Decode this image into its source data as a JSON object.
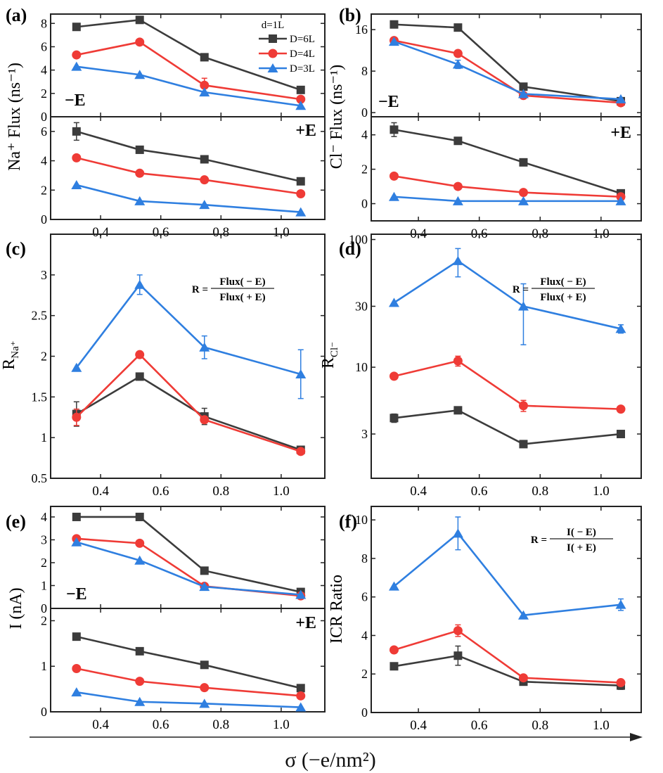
{
  "colors": {
    "D6": "#3c3c3c",
    "D4": "#ef3b36",
    "D3": "#2f7fe0"
  },
  "series_names": [
    "D=6L",
    "D=4L",
    "D=3L"
  ],
  "legend_title": "d=1L",
  "x_axis_label": "σ (−e/nm²)",
  "chart_data": [
    {
      "id": "a",
      "panel_label": "(a)",
      "type": "line",
      "ylabel": "Na⁺ Flux (ns⁻¹)",
      "x": [
        0.32,
        0.53,
        0.745,
        1.065
      ],
      "xlim": [
        0.234,
        1.145
      ],
      "xticks": [
        0.4,
        0.6,
        0.8,
        1.0
      ],
      "subplots": [
        {
          "field_label": "−E",
          "ylim": [
            0,
            8.8
          ],
          "yticks": [
            0,
            2,
            4,
            6,
            8
          ],
          "series": [
            {
              "name": "D=6L",
              "values": [
                7.7,
                8.3,
                5.1,
                2.3
              ],
              "err": [
                0,
                0,
                0,
                0
              ]
            },
            {
              "name": "D=4L",
              "values": [
                5.3,
                6.4,
                2.7,
                1.5
              ],
              "err": [
                0,
                0,
                0.6,
                0
              ]
            },
            {
              "name": "D=3L",
              "values": [
                4.3,
                3.6,
                2.1,
                0.95
              ],
              "err": [
                0,
                0,
                0,
                0
              ]
            }
          ]
        },
        {
          "field_label": "+E",
          "ylim": [
            0,
            7
          ],
          "yticks": [
            0,
            2,
            4,
            6
          ],
          "series": [
            {
              "name": "D=6L",
              "values": [
                6.0,
                4.75,
                4.1,
                2.6
              ],
              "err": [
                0.6,
                0,
                0,
                0
              ]
            },
            {
              "name": "D=4L",
              "values": [
                4.2,
                3.15,
                2.7,
                1.75
              ],
              "err": [
                0,
                0,
                0,
                0
              ]
            },
            {
              "name": "D=3L",
              "values": [
                2.35,
                1.25,
                1.0,
                0.5
              ],
              "err": [
                0,
                0,
                0,
                0
              ]
            }
          ]
        }
      ]
    },
    {
      "id": "b",
      "panel_label": "(b)",
      "type": "line",
      "ylabel": "Cl⁻ Flux (ns⁻¹)",
      "x": [
        0.32,
        0.53,
        0.745,
        1.065
      ],
      "xlim": [
        0.245,
        1.132
      ],
      "xticks": [
        0.4,
        0.6,
        0.8,
        1.0
      ],
      "subplots": [
        {
          "field_label": "−E",
          "ylim": [
            -0.8,
            19
          ],
          "yticks": [
            0,
            8,
            16
          ],
          "series": [
            {
              "name": "D=6L",
              "values": [
                17,
                16.4,
                5.0,
                2.2
              ],
              "err": [
                0,
                0,
                0,
                0
              ]
            },
            {
              "name": "D=4L",
              "values": [
                13.9,
                11.4,
                3.3,
                1.9
              ],
              "err": [
                0,
                0,
                0,
                0
              ]
            },
            {
              "name": "D=3L",
              "values": [
                13.7,
                9.3,
                3.6,
                2.6
              ],
              "err": [
                0,
                0.8,
                0,
                0
              ]
            }
          ]
        },
        {
          "field_label": "+E",
          "ylim": [
            -1,
            5.05
          ],
          "yticks": [
            0,
            2,
            4
          ],
          "series": [
            {
              "name": "D=6L",
              "values": [
                4.3,
                3.65,
                2.4,
                0.6
              ],
              "err": [
                0.4,
                0,
                0,
                0
              ]
            },
            {
              "name": "D=4L",
              "values": [
                1.6,
                1.0,
                0.65,
                0.4
              ],
              "err": [
                0,
                0,
                0,
                0
              ]
            },
            {
              "name": "D=3L",
              "values": [
                0.4,
                0.15,
                0.15,
                0.15
              ],
              "err": [
                0,
                0,
                0,
                0
              ]
            }
          ]
        }
      ]
    },
    {
      "id": "c",
      "panel_label": "(c)",
      "type": "line",
      "ylabel": "R",
      "ylabel_sub": "Na⁺",
      "formula": {
        "lhs": "R =",
        "num": "Flux( − E)",
        "den": "Flux( + E)"
      },
      "x": [
        0.32,
        0.53,
        0.745,
        1.065
      ],
      "xlim": [
        0.234,
        1.145
      ],
      "xticks": [
        0.4,
        0.6,
        0.8,
        1.0
      ],
      "subplots": [
        {
          "ylim": [
            0.5,
            3.5
          ],
          "yticks": [
            0.5,
            1.0,
            1.5,
            2.0,
            2.5,
            3.0
          ],
          "series": [
            {
              "name": "D=6L",
              "values": [
                1.29,
                1.75,
                1.26,
                0.85
              ],
              "err": [
                0.15,
                0,
                0.1,
                0
              ]
            },
            {
              "name": "D=4L",
              "values": [
                1.25,
                2.02,
                1.22,
                0.83
              ],
              "err": [
                0.1,
                0,
                0.04,
                0
              ]
            },
            {
              "name": "D=3L",
              "values": [
                1.86,
                2.88,
                2.11,
                1.78
              ],
              "err": [
                0,
                0.12,
                0.14,
                0.3
              ]
            }
          ]
        }
      ]
    },
    {
      "id": "d",
      "panel_label": "(d)",
      "type": "line",
      "yscale": "log",
      "ylabel": "R",
      "ylabel_sub": "Cl⁻",
      "formula": {
        "lhs": "R =",
        "num": "Flux( − E)",
        "den": "Flux( + E)"
      },
      "x": [
        0.32,
        0.53,
        0.745,
        1.065
      ],
      "xlim": [
        0.245,
        1.132
      ],
      "xticks": [
        0.4,
        0.6,
        0.8,
        1.0
      ],
      "subplots": [
        {
          "ylim": [
            1.35,
            110
          ],
          "yticks": [
            3,
            10,
            30,
            100
          ],
          "series": [
            {
              "name": "D=6L",
              "values": [
                4.0,
                4.6,
                2.5,
                3.0
              ],
              "err": [
                0.3,
                0,
                0,
                0
              ]
            },
            {
              "name": "D=4L",
              "values": [
                8.5,
                11.2,
                5.0,
                4.7
              ],
              "err": [
                0,
                1.0,
                0.5,
                0
              ]
            },
            {
              "name": "D=3L",
              "values": [
                32,
                68,
                30,
                20
              ],
              "err": [
                0,
                17,
                15,
                1.5
              ]
            }
          ]
        }
      ]
    },
    {
      "id": "e",
      "panel_label": "(e)",
      "type": "line",
      "ylabel": "I (nA)",
      "x": [
        0.32,
        0.53,
        0.745,
        1.065
      ],
      "xlim": [
        0.234,
        1.145
      ],
      "xticks": [
        0.4,
        0.6,
        0.8,
        1.0
      ],
      "subplots": [
        {
          "field_label": "−E",
          "ylim": [
            0,
            4.46
          ],
          "yticks": [
            0,
            1,
            2,
            3,
            4
          ],
          "series": [
            {
              "name": "D=6L",
              "values": [
                4.0,
                4.0,
                1.65,
                0.72
              ],
              "err": [
                0,
                0,
                0,
                0
              ]
            },
            {
              "name": "D=4L",
              "values": [
                3.05,
                2.85,
                0.97,
                0.55
              ],
              "err": [
                0,
                0,
                0,
                0
              ]
            },
            {
              "name": "D=3L",
              "values": [
                2.9,
                2.1,
                0.95,
                0.6
              ],
              "err": [
                0,
                0,
                0,
                0
              ]
            }
          ]
        },
        {
          "field_label": "+E",
          "ylim": [
            0,
            2.27
          ],
          "yticks": [
            0,
            1,
            2
          ],
          "series": [
            {
              "name": "D=6L",
              "values": [
                1.65,
                1.33,
                1.03,
                0.52
              ],
              "err": [
                0,
                0,
                0,
                0
              ]
            },
            {
              "name": "D=4L",
              "values": [
                0.95,
                0.67,
                0.53,
                0.35
              ],
              "err": [
                0,
                0,
                0,
                0
              ]
            },
            {
              "name": "D=3L",
              "values": [
                0.43,
                0.22,
                0.18,
                0.1
              ],
              "err": [
                0,
                0,
                0,
                0
              ]
            }
          ]
        }
      ]
    },
    {
      "id": "f",
      "panel_label": "(f)",
      "type": "line",
      "ylabel": "ICR Ratio",
      "formula": {
        "lhs": "R =",
        "num": "I( − E)",
        "den": "I( + E)"
      },
      "x": [
        0.32,
        0.53,
        0.745,
        1.065
      ],
      "xlim": [
        0.245,
        1.132
      ],
      "xticks": [
        0.4,
        0.6,
        0.8,
        1.0
      ],
      "subplots": [
        {
          "ylim": [
            0,
            10.7
          ],
          "yticks": [
            0,
            2,
            4,
            6,
            8,
            10
          ],
          "series": [
            {
              "name": "D=6L",
              "values": [
                2.4,
                2.95,
                1.6,
                1.4
              ],
              "err": [
                0,
                0.5,
                0,
                0.2
              ]
            },
            {
              "name": "D=4L",
              "values": [
                3.25,
                4.25,
                1.8,
                1.55
              ],
              "err": [
                0,
                0.3,
                0,
                0
              ]
            },
            {
              "name": "D=3L",
              "values": [
                6.55,
                9.3,
                5.05,
                5.6
              ],
              "err": [
                0,
                0.85,
                0,
                0.3
              ]
            }
          ]
        }
      ]
    }
  ]
}
